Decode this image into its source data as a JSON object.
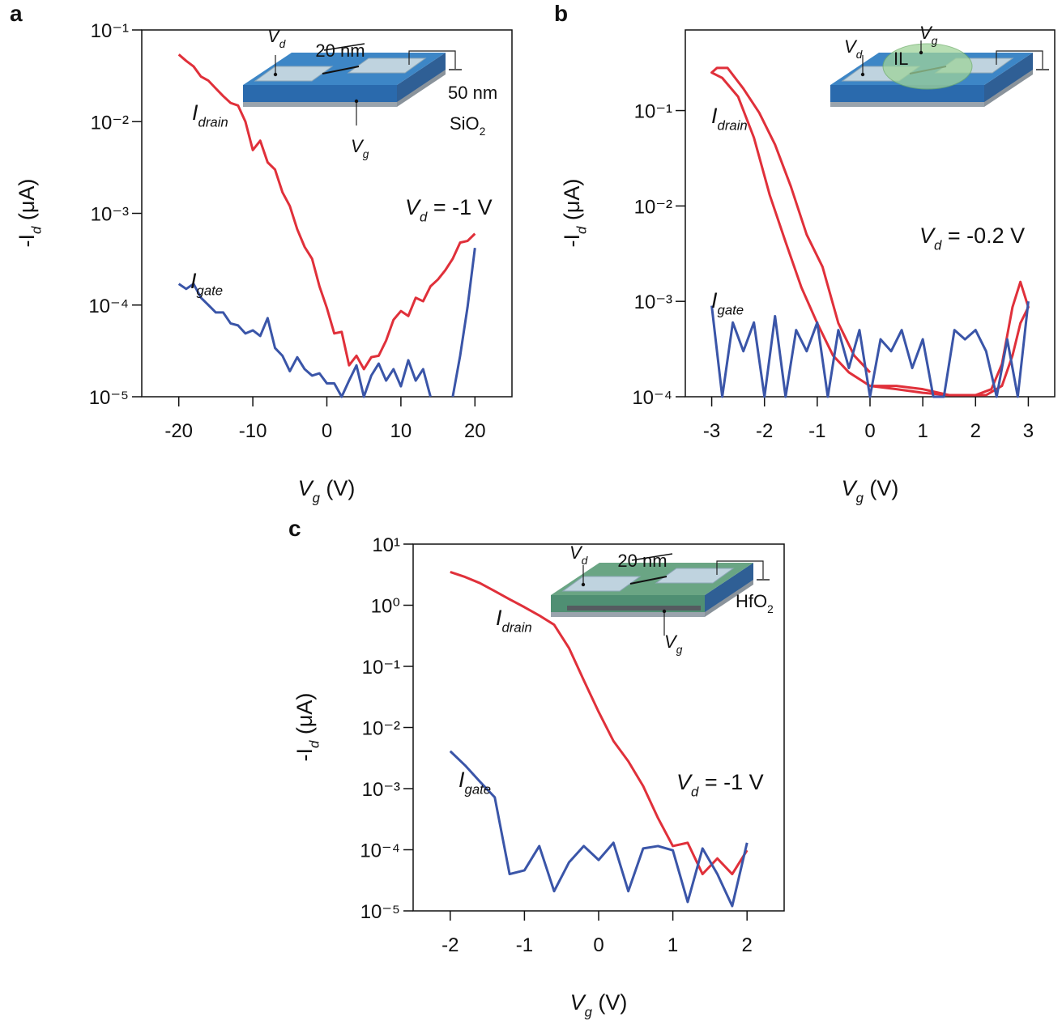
{
  "chart_data": [
    {
      "type": "line",
      "panel": "a",
      "log_y": true,
      "xlim": [
        -25,
        25
      ],
      "xticks": [
        -20,
        -10,
        0,
        10,
        20
      ],
      "ylim": [
        1e-05,
        0.1
      ],
      "yticks": [
        {
          "value": 1e-05,
          "label": "10⁻⁵"
        },
        {
          "value": 0.0001,
          "label": "10⁻⁴"
        },
        {
          "value": 0.001,
          "label": "10⁻³"
        },
        {
          "value": 0.01,
          "label": "10⁻²"
        },
        {
          "value": 0.1,
          "label": "10⁻¹"
        }
      ],
      "xlabel": [
        "V",
        "g",
        " (V)"
      ],
      "ylabel": [
        "-I",
        "d",
        " (μA)"
      ],
      "annotation": [
        "V",
        "d",
        " = -1 V"
      ],
      "inset_labels": [
        [
          "V",
          "d"
        ],
        [
          "20 nm"
        ],
        [
          "50 nm"
        ],
        [
          "SiO",
          "2"
        ],
        [
          "V",
          "g"
        ]
      ],
      "series": [
        {
          "name": [
            "I",
            "drain"
          ],
          "color": "#e0303a",
          "x": [
            -20,
            -19,
            -18,
            -17,
            -16,
            -15,
            -14,
            -13,
            -12,
            -11,
            -10,
            -9,
            -8,
            -7,
            -6,
            -5,
            -4,
            -3,
            -2,
            -1,
            0,
            1,
            2,
            3,
            4,
            5,
            6,
            7,
            8,
            9,
            10,
            11,
            12,
            13,
            14,
            15,
            16,
            17,
            18,
            19,
            20
          ],
          "values": [
            0.054,
            0.046,
            0.04,
            0.031,
            0.028,
            0.023,
            0.019,
            0.016,
            0.015,
            0.01,
            0.0049,
            0.0062,
            0.0036,
            0.003,
            0.0017,
            0.0012,
            0.00067,
            0.00043,
            0.00032,
            0.00016,
            9.3e-05,
            4.9e-05,
            5.1e-05,
            2.2e-05,
            2.8e-05,
            2e-05,
            2.7e-05,
            2.8e-05,
            4.1e-05,
            6.9e-05,
            8.6e-05,
            7.6e-05,
            0.00012,
            0.00011,
            0.00016,
            0.00019,
            0.00024,
            0.00032,
            0.00048,
            0.0005,
            0.0006
          ]
        },
        {
          "name": [
            "I",
            "gate"
          ],
          "color": "#3a55a8",
          "x": [
            -20,
            -19,
            -18,
            -17,
            -16,
            -15,
            -14,
            -13,
            -12,
            -11,
            -10,
            -9,
            -8,
            -7,
            -6,
            -5,
            -4,
            -3,
            -2,
            -1,
            0,
            1,
            2,
            3,
            4,
            5,
            6,
            7,
            8,
            9,
            10,
            11,
            12,
            13,
            14,
            15,
            16,
            17,
            18,
            19,
            20
          ],
          "values": [
            0.00017,
            0.00015,
            0.00017,
            0.00012,
            0.0001,
            8.3e-05,
            8.3e-05,
            6.3e-05,
            6e-05,
            4.9e-05,
            5.3e-05,
            4.6e-05,
            7.2e-05,
            3.4e-05,
            2.8e-05,
            1.9e-05,
            2.7e-05,
            2e-05,
            1.7e-05,
            1.8e-05,
            1.4e-05,
            1.4e-05,
            1e-05,
            1.5e-05,
            2.2e-05,
            1e-05,
            1.7e-05,
            2.3e-05,
            1.5e-05,
            2e-05,
            1.3e-05,
            2.5e-05,
            1.5e-05,
            2e-05,
            1e-05,
            null,
            null,
            1e-05,
            2.8e-05,
            9.5e-05,
            0.00042
          ]
        }
      ]
    },
    {
      "type": "line",
      "panel": "b",
      "log_y": true,
      "xlim": [
        -3.5,
        3.5
      ],
      "xticks": [
        -3,
        -2,
        -1,
        0,
        1,
        2,
        3
      ],
      "ylim": [
        0.0001,
        0.7
      ],
      "yticks": [
        {
          "value": 0.0001,
          "label": "10⁻⁴"
        },
        {
          "value": 0.001,
          "label": "10⁻³"
        },
        {
          "value": 0.01,
          "label": "10⁻²"
        },
        {
          "value": 0.1,
          "label": "10⁻¹"
        }
      ],
      "xlabel": [
        "V",
        "g",
        " (V)"
      ],
      "ylabel": [
        "-I",
        "d",
        " (μA)"
      ],
      "annotation": [
        "V",
        "d",
        " = -0.2 V"
      ],
      "inset_labels": [
        [
          "V",
          "d"
        ],
        [
          "IL"
        ],
        [
          "V",
          "g"
        ]
      ],
      "series": [
        {
          "name": [
            "I",
            "drain"
          ],
          "color": "#e0303a",
          "x": [
            0,
            -0.3,
            -0.6,
            -0.9,
            -1.2,
            -1.5,
            -1.8,
            -2.1,
            -2.4,
            -2.7,
            -2.9,
            -3.0,
            -2.8,
            -2.5,
            -2.2,
            -1.9,
            -1.6,
            -1.3,
            -1.0,
            -0.7,
            -0.4,
            0,
            0.5,
            1.0,
            1.5,
            2.0,
            2.3,
            2.5,
            2.7,
            2.85,
            3.0,
            2.85,
            2.7,
            2.5,
            2.2,
            1.5,
            1.0,
            0.5,
            0
          ],
          "values": [
            0.00018,
            0.00027,
            0.00059,
            0.0023,
            0.005,
            0.016,
            0.044,
            0.095,
            0.17,
            0.28,
            0.28,
            0.25,
            0.22,
            0.14,
            0.052,
            0.013,
            0.0042,
            0.0014,
            0.00059,
            0.00027,
            0.00018,
            0.00013,
            0.00012,
            0.00011,
            0.000104,
            0.000104,
            0.00012,
            0.00022,
            0.00087,
            0.0016,
            0.00087,
            0.00059,
            0.00027,
            0.00013,
            0.000104,
            0.000104,
            0.00012,
            0.00013,
            0.00013
          ]
        },
        {
          "name": [
            "I",
            "gate"
          ],
          "color": "#3a55a8",
          "x": [
            -3,
            -2.8,
            -2.6,
            -2.4,
            -2.2,
            -2,
            -1.8,
            -1.6,
            -1.4,
            -1.2,
            -1,
            -0.8,
            -0.6,
            -0.4,
            -0.2,
            0,
            0.2,
            0.4,
            0.6,
            0.8,
            1,
            1.2,
            1.4,
            1.6,
            1.8,
            2,
            2.2,
            2.4,
            2.6,
            2.8,
            3
          ],
          "values": [
            0.0009,
            0.0001,
            0.0006,
            0.0003,
            0.0006,
            0.0001,
            0.0007,
            0.0001,
            0.0005,
            0.0003,
            0.0006,
            0.0001,
            0.0005,
            0.0002,
            0.0005,
            0.0001,
            0.0004,
            0.0003,
            0.0005,
            0.0002,
            0.0004,
            0.0001,
            0.0001,
            0.0005,
            0.0004,
            0.0005,
            0.0003,
            0.0001,
            0.0004,
            0.0001,
            0.001
          ]
        }
      ]
    },
    {
      "type": "line",
      "panel": "c",
      "log_y": true,
      "xlim": [
        -2.5,
        2.5
      ],
      "xticks": [
        -2,
        -1,
        0,
        1,
        2
      ],
      "ylim": [
        1e-05,
        10
      ],
      "yticks": [
        {
          "value": 1e-05,
          "label": "10⁻⁵"
        },
        {
          "value": 0.0001,
          "label": "10⁻⁴"
        },
        {
          "value": 0.001,
          "label": "10⁻³"
        },
        {
          "value": 0.01,
          "label": "10⁻²"
        },
        {
          "value": 0.1,
          "label": "10⁻¹"
        },
        {
          "value": 1,
          "label": "10⁰"
        },
        {
          "value": 10,
          "label": "10¹"
        }
      ],
      "xlabel": [
        "V",
        "g",
        " (V)"
      ],
      "ylabel": [
        "-I",
        "d",
        " (μA)"
      ],
      "annotation": [
        "V",
        "d",
        " = -1 V"
      ],
      "inset_labels": [
        [
          "V",
          "d"
        ],
        [
          "20 nm"
        ],
        [
          "HfO",
          "2"
        ],
        [
          "V",
          "g"
        ]
      ],
      "series": [
        {
          "name": [
            "I",
            "drain"
          ],
          "color": "#e0303a",
          "x": [
            -2,
            -1.8,
            -1.6,
            -1.4,
            -1.2,
            -1,
            -0.8,
            -0.6,
            -0.4,
            -0.2,
            0,
            0.2,
            0.4,
            0.6,
            0.8,
            1,
            1.2,
            1.4,
            1.6,
            1.8,
            2
          ],
          "values": [
            3.5,
            2.9,
            2.3,
            1.7,
            1.25,
            0.93,
            0.68,
            0.48,
            0.2,
            0.059,
            0.018,
            0.006,
            0.0028,
            0.0011,
            0.00033,
            0.000115,
            0.00013,
            4e-05,
            7.2e-05,
            4e-05,
            9.8e-05
          ]
        },
        {
          "name": [
            "I",
            "gate"
          ],
          "color": "#3a55a8",
          "x": [
            -2,
            -1.8,
            -1.6,
            -1.4,
            -1.2,
            -1,
            -0.8,
            -0.6,
            -0.4,
            -0.2,
            0,
            0.2,
            0.4,
            0.6,
            0.8,
            1,
            1.2,
            1.4,
            1.6,
            1.8,
            2
          ],
          "values": [
            0.0041,
            0.0024,
            0.0013,
            0.00072,
            4e-05,
            4.6e-05,
            0.000115,
            2.1e-05,
            6.2e-05,
            0.000115,
            6.8e-05,
            0.00013,
            2.1e-05,
            0.000105,
            0.000115,
            9.8e-05,
            1.4e-05,
            0.000105,
            4e-05,
            1.2e-05,
            0.00013
          ]
        }
      ]
    }
  ]
}
